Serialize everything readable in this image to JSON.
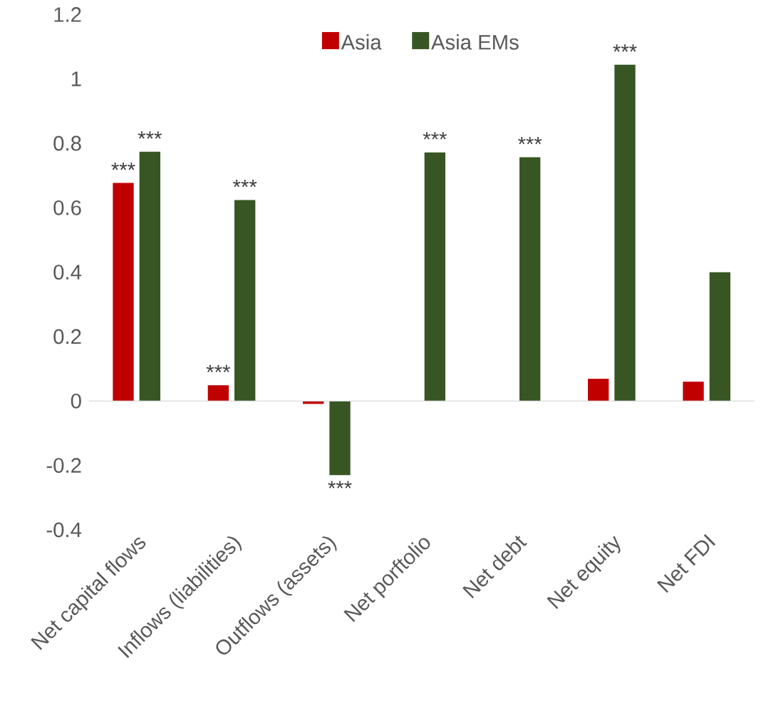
{
  "chart_data": {
    "type": "bar",
    "categories": [
      "Net capital flows",
      "Inflows (liabilities)",
      "Outflows (assets)",
      "Net porftolio",
      "Net debt",
      "Net equity",
      "Net FDI"
    ],
    "series": [
      {
        "name": "Asia",
        "color": "#c00000",
        "values": [
          0.677,
          0.049,
          -0.009,
          null,
          null,
          0.069,
          0.06
        ]
      },
      {
        "name": "Asia EMs",
        "color": "#375623",
        "values": [
          0.774,
          0.624,
          -0.23,
          0.772,
          0.757,
          1.044,
          0.4
        ]
      }
    ],
    "ylim": [
      -0.4,
      1.2
    ],
    "yticks": [
      -0.4,
      -0.2,
      0,
      0.2,
      0.4,
      0.6,
      0.8,
      1,
      1.2
    ],
    "legend": "top",
    "annotations": [
      {
        "text": "***",
        "x": "Net capital flows",
        "y": 0.677
      },
      {
        "text": "***",
        "x": "Net capital flows",
        "y": 0.774
      },
      {
        "text": "***",
        "x": "Inflows (liabilities)",
        "y": 0.049
      },
      {
        "text": "***",
        "x": "Inflows (liabilities)",
        "y": 0.624
      },
      {
        "text": "***",
        "x": "Outflows (assets)",
        "y": -0.23
      },
      {
        "text": "***",
        "x": "Net porftolio",
        "y": 0.772
      },
      {
        "text": "***",
        "x": "Net debt",
        "y": 0.757
      },
      {
        "text": "***",
        "x": "Net equity",
        "y": 1.044
      }
    ]
  }
}
